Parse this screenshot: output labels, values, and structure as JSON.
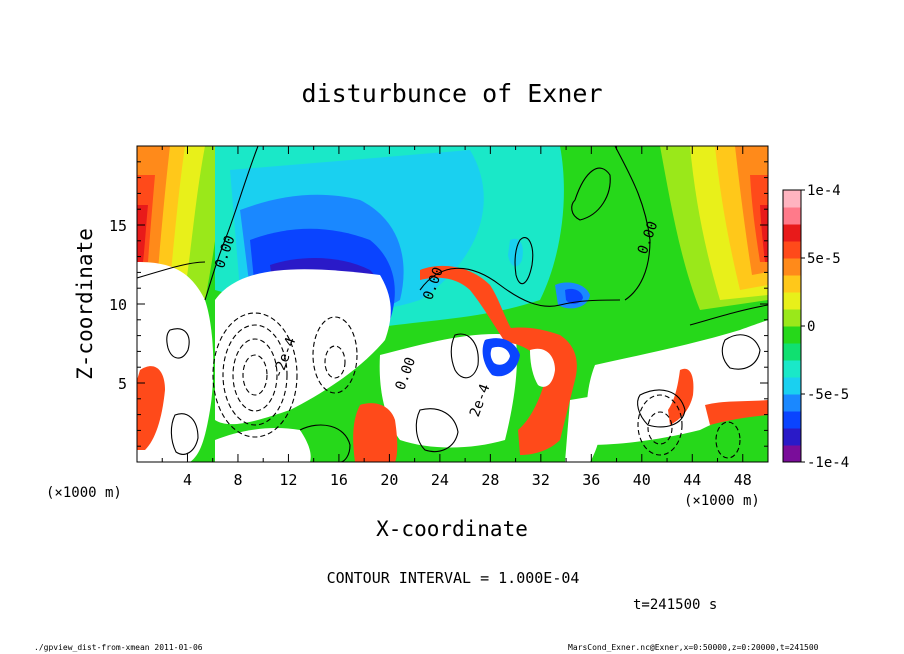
{
  "chart_data": {
    "type": "heatmap",
    "title": "disturbunce of Exner",
    "xlabel": "X-coordinate",
    "ylabel": "Z-coordinate",
    "x_unit_label": "(×1000 m)",
    "x_unit_label_right": "(×1000 m)",
    "xlim": [
      0,
      50
    ],
    "ylim": [
      0,
      20
    ],
    "x_ticks": [
      4,
      8,
      12,
      16,
      20,
      24,
      28,
      32,
      36,
      40,
      44,
      48
    ],
    "y_ticks": [
      5,
      10,
      15
    ],
    "colorbar": {
      "range": [
        -0.0001,
        0.0001
      ],
      "tick_values": [
        0.0001,
        5e-05,
        0,
        -5e-05,
        -0.0001
      ],
      "tick_labels": [
        "1e-4",
        "5e-5",
        "0",
        "-5e-5",
        "-1e-4"
      ],
      "colors": [
        "#7a0d9a",
        "#2a1ac8",
        "#0a44ff",
        "#1a88ff",
        "#1ad0f0",
        "#1ae8c8",
        "#10e070",
        "#26d81a",
        "#9ae81a",
        "#e8f01a",
        "#ffc81a",
        "#ff8a1a",
        "#ff4a1a",
        "#e81a1a",
        "#ff7a8a",
        "#ffb4c0"
      ]
    },
    "contour_labels": [
      {
        "text": "0.00",
        "x": 7.3,
        "z": 13.2
      },
      {
        "text": "0.00",
        "x": 23.8,
        "z": 11.2
      },
      {
        "text": "0.00",
        "x": 21.6,
        "z": 5.5
      },
      {
        "text": "0.00",
        "x": 40.8,
        "z": 14.1
      },
      {
        "text": "-2e-4",
        "x": 12.0,
        "z": 6.5
      },
      {
        "text": "2e-4",
        "x": 27.5,
        "z": 3.8
      }
    ],
    "contour_interval_label": "CONTOUR INTERVAL = 1.000E-04",
    "time_label": "t=241500 s"
  },
  "footer": {
    "left": "./gpview_dist-from-xmean  2011-01-06",
    "right": "MarsCond_Exner.nc@Exner,x=0:50000,z=0:20000,t=241500"
  }
}
